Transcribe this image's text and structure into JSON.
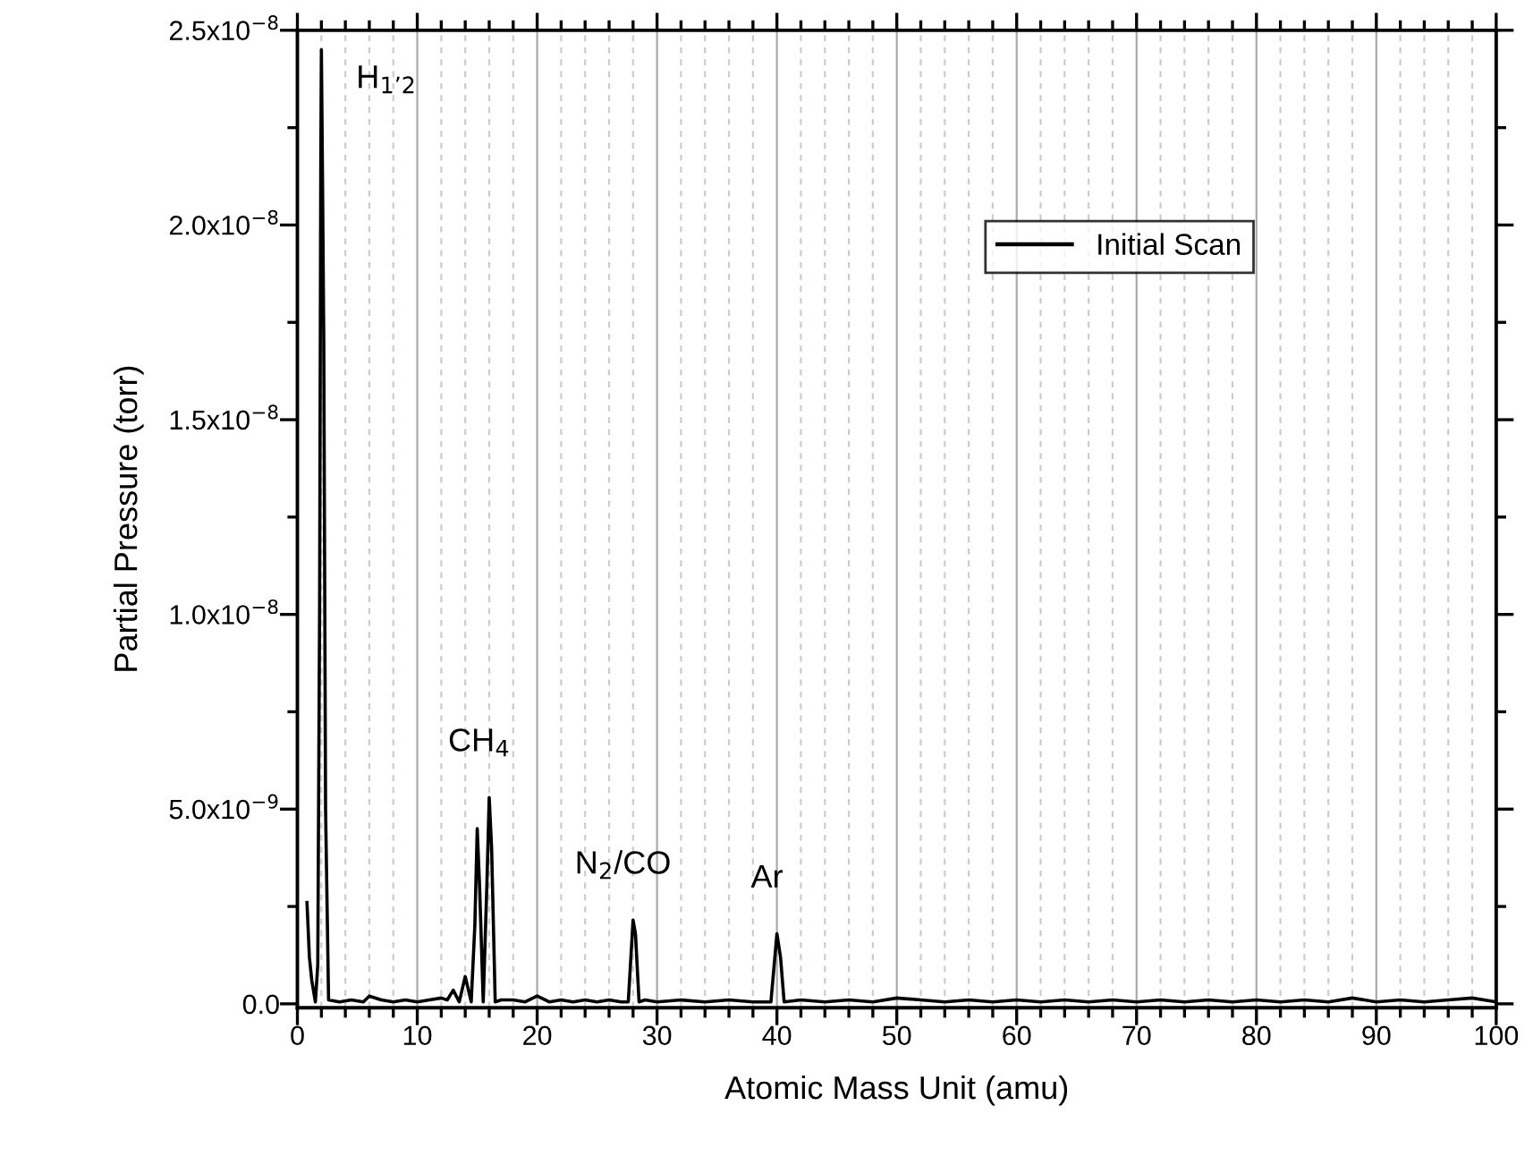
{
  "chart_data": {
    "type": "line",
    "xlabel": "Atomic Mass Unit (amu)",
    "ylabel": "Partial Pressure (torr)",
    "xlim": [
      0,
      100
    ],
    "ylim": [
      -1e-10,
      2.5e-08
    ],
    "xticks": [
      0,
      {
        "value": 2,
        "label": null
      },
      {
        "value": 4,
        "label": null
      },
      {
        "value": 6,
        "label": null
      },
      {
        "value": 8,
        "label": null
      },
      10,
      {
        "value": 12,
        "label": null
      },
      {
        "value": 14,
        "label": null
      },
      {
        "value": 16,
        "label": null
      },
      {
        "value": 18,
        "label": null
      },
      20,
      {
        "value": 22,
        "label": null
      },
      {
        "value": 24,
        "label": null
      },
      {
        "value": 26,
        "label": null
      },
      {
        "value": 28,
        "label": null
      },
      30,
      {
        "value": 32,
        "label": null
      },
      {
        "value": 34,
        "label": null
      },
      {
        "value": 36,
        "label": null
      },
      {
        "value": 38,
        "label": null
      },
      40,
      {
        "value": 42,
        "label": null
      },
      {
        "value": 44,
        "label": null
      },
      {
        "value": 46,
        "label": null
      },
      {
        "value": 48,
        "label": null
      },
      50,
      {
        "value": 52,
        "label": null
      },
      {
        "value": 54,
        "label": null
      },
      {
        "value": 56,
        "label": null
      },
      {
        "value": 58,
        "label": null
      },
      60,
      {
        "value": 62,
        "label": null
      },
      {
        "value": 64,
        "label": null
      },
      {
        "value": 66,
        "label": null
      },
      {
        "value": 68,
        "label": null
      },
      70,
      {
        "value": 72,
        "label": null
      },
      {
        "value": 74,
        "label": null
      },
      {
        "value": 76,
        "label": null
      },
      {
        "value": 78,
        "label": null
      },
      80,
      {
        "value": 82,
        "label": null
      },
      {
        "value": 84,
        "label": null
      },
      {
        "value": 86,
        "label": null
      },
      {
        "value": 88,
        "label": null
      },
      90,
      {
        "value": 92,
        "label": null
      },
      {
        "value": 94,
        "label": null
      },
      {
        "value": 96,
        "label": null
      },
      {
        "value": 98,
        "label": null
      },
      100
    ],
    "yticks": [
      {
        "value": 0,
        "label": "0.0"
      },
      {
        "value": 2.5e-09,
        "label": null
      },
      {
        "value": 5e-09,
        "label": "5.0x10$^{−9}$"
      },
      {
        "value": 7.5e-09,
        "label": null
      },
      {
        "value": 1e-08,
        "label": "1.0x10$^{−8}$"
      },
      {
        "value": 1.25e-08,
        "label": null
      },
      {
        "value": 1.5e-08,
        "label": "1.5x10$^{−8}$"
      },
      {
        "value": 1.75e-08,
        "label": null
      },
      {
        "value": 2e-08,
        "label": "2.0x10$^{−8}$"
      },
      {
        "value": 2.25e-08,
        "label": null
      },
      {
        "value": 2.5e-08,
        "label": "2.5x10$^{−8}$"
      }
    ],
    "grid": "x",
    "legend": "upper right",
    "series": [
      {
        "name": "Initial Scan",
        "color": "#000000",
        "x": [
          0.8,
          1.0,
          1.2,
          1.5,
          1.7,
          1.85,
          1.95,
          2.0,
          2.1,
          2.2,
          2.35,
          2.6,
          3.5,
          4.5,
          5.5,
          6.0,
          7.0,
          8.0,
          9.0,
          10.0,
          11.0,
          12.0,
          12.5,
          13.0,
          13.5,
          14.0,
          14.5,
          14.8,
          15.0,
          15.2,
          15.5,
          15.8,
          16.0,
          16.2,
          16.5,
          17.0,
          18.0,
          19.0,
          20.0,
          21.0,
          22.0,
          23.0,
          24.0,
          25.0,
          26.0,
          27.0,
          27.6,
          28.0,
          28.2,
          28.5,
          29.0,
          30.0,
          32.0,
          34.0,
          36.0,
          38.0,
          39.5,
          40.0,
          40.3,
          40.6,
          42.0,
          44.0,
          46.0,
          48.0,
          50.0,
          52.0,
          54.0,
          56.0,
          58.0,
          60.0,
          62.0,
          64.0,
          66.0,
          68.0,
          70.0,
          72.0,
          74.0,
          76.0,
          78.0,
          80.0,
          82.0,
          84.0,
          86.0,
          88.0,
          90.0,
          92.0,
          94.0,
          96.0,
          98.0,
          100.0
        ],
        "values": [
          2.6e-09,
          1.2e-09,
          6e-10,
          5e-11,
          1e-09,
          1e-08,
          2.15e-08,
          2.45e-08,
          2.1e-08,
          1.7e-08,
          5e-09,
          1e-10,
          5e-11,
          1e-10,
          5e-11,
          2e-10,
          1e-10,
          5e-11,
          1e-10,
          5e-11,
          1e-10,
          1.5e-10,
          1e-10,
          3.5e-10,
          5e-11,
          7e-10,
          5e-11,
          2e-09,
          4.5e-09,
          3e-09,
          5e-11,
          3e-09,
          5.3e-09,
          4e-09,
          5e-11,
          1e-10,
          1e-10,
          5e-11,
          2e-10,
          5e-11,
          1e-10,
          5e-11,
          1e-10,
          5e-11,
          1e-10,
          5e-11,
          5e-11,
          2.15e-09,
          1.8e-09,
          5e-11,
          1e-10,
          5e-11,
          1e-10,
          5e-11,
          1e-10,
          5e-11,
          5e-11,
          1.8e-09,
          1.2e-09,
          5e-11,
          1e-10,
          5e-11,
          1e-10,
          5e-11,
          1.5e-10,
          1e-10,
          5e-11,
          1e-10,
          5e-11,
          1e-10,
          5e-11,
          1e-10,
          5e-11,
          1e-10,
          5e-11,
          1e-10,
          5e-11,
          1e-10,
          5e-11,
          1e-10,
          5e-11,
          1e-10,
          5e-11,
          1.5e-10,
          5e-11,
          1e-10,
          5e-11,
          1e-10,
          1.5e-10,
          5e-11
        ]
      }
    ],
    "annotations": [
      {
        "text": "H$_{1’2}$",
        "x": 2.0,
        "y": 2.45e-08
      },
      {
        "text": "CH$_{4}$",
        "x": 16.0,
        "y": 5.3e-09
      },
      {
        "text": "N$_{2}$/CO",
        "x": 28.0,
        "y": 2.15e-09
      },
      {
        "text": "Ar",
        "x": 40.0,
        "y": 1.8e-09
      }
    ]
  }
}
